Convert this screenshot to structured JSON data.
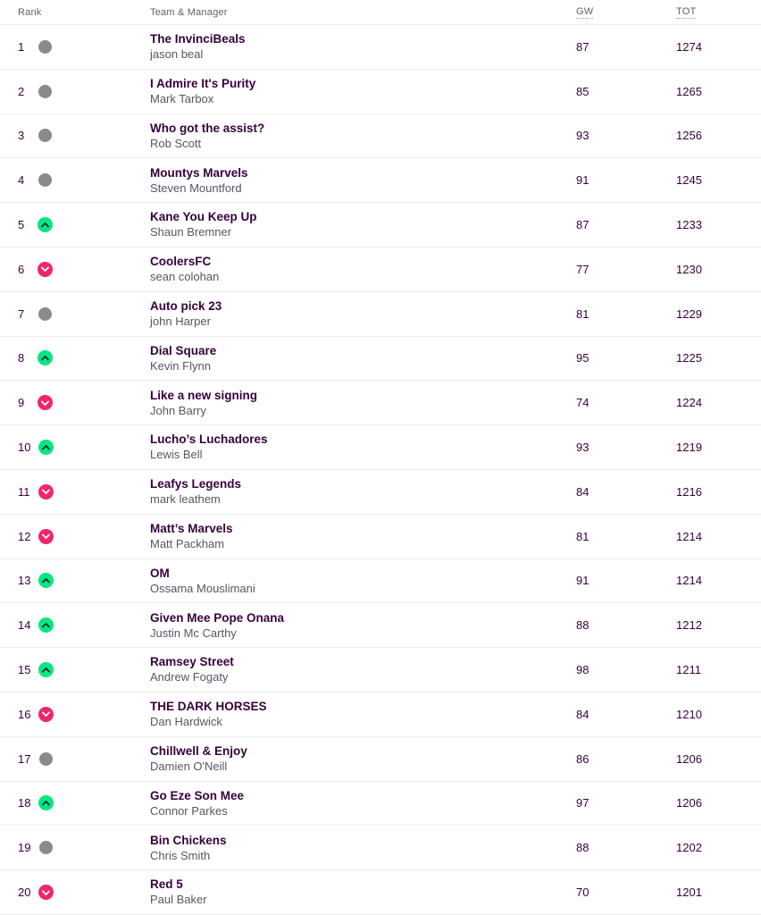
{
  "header": {
    "rank": "Rank",
    "team_manager": "Team & Manager",
    "gw": "GW",
    "tot": "TOT"
  },
  "colors": {
    "movement_up": "#01e87f",
    "movement_down": "#f0256e",
    "movement_same": "#8a8a8a",
    "accent_dark": "#37003c"
  },
  "table": {
    "rows": [
      {
        "rank": "1",
        "movement": "same",
        "team": "The InvinciBeals",
        "manager": "jason beal",
        "gw": "87",
        "tot": "1274"
      },
      {
        "rank": "2",
        "movement": "same",
        "team": "I Admire It's Purity",
        "manager": "Mark Tarbox",
        "gw": "85",
        "tot": "1265"
      },
      {
        "rank": "3",
        "movement": "same",
        "team": "Who got the assist?",
        "manager": "Rob Scott",
        "gw": "93",
        "tot": "1256"
      },
      {
        "rank": "4",
        "movement": "same",
        "team": "Mountys Marvels",
        "manager": "Steven Mountford",
        "gw": "91",
        "tot": "1245"
      },
      {
        "rank": "5",
        "movement": "up",
        "team": "Kane You Keep Up",
        "manager": "Shaun Bremner",
        "gw": "87",
        "tot": "1233"
      },
      {
        "rank": "6",
        "movement": "down",
        "team": "CoolersFC",
        "manager": "sean colohan",
        "gw": "77",
        "tot": "1230"
      },
      {
        "rank": "7",
        "movement": "same",
        "team": "Auto pick 23",
        "manager": "john Harper",
        "gw": "81",
        "tot": "1229"
      },
      {
        "rank": "8",
        "movement": "up",
        "team": "Dial Square",
        "manager": "Kevin Flynn",
        "gw": "95",
        "tot": "1225"
      },
      {
        "rank": "9",
        "movement": "down",
        "team": "Like a new signing",
        "manager": "John Barry",
        "gw": "74",
        "tot": "1224"
      },
      {
        "rank": "10",
        "movement": "up",
        "team": "Lucho’s Luchadores",
        "manager": "Lewis Bell",
        "gw": "93",
        "tot": "1219"
      },
      {
        "rank": "11",
        "movement": "down",
        "team": "Leafys Legends",
        "manager": "mark leathem",
        "gw": "84",
        "tot": "1216"
      },
      {
        "rank": "12",
        "movement": "down",
        "team": "Matt’s Marvels",
        "manager": "Matt Packham",
        "gw": "81",
        "tot": "1214"
      },
      {
        "rank": "13",
        "movement": "up",
        "team": "OM",
        "manager": "Ossama Mouslimani",
        "gw": "91",
        "tot": "1214"
      },
      {
        "rank": "14",
        "movement": "up",
        "team": "Given Mee Pope Onana",
        "manager": "Justin Mc Carthy",
        "gw": "88",
        "tot": "1212"
      },
      {
        "rank": "15",
        "movement": "up",
        "team": "Ramsey Street",
        "manager": "Andrew Fogaty",
        "gw": "98",
        "tot": "1211"
      },
      {
        "rank": "16",
        "movement": "down",
        "team": "THE DARK HORSES",
        "manager": "Dan Hardwick",
        "gw": "84",
        "tot": "1210"
      },
      {
        "rank": "17",
        "movement": "same",
        "team": "Chillwell & Enjoy",
        "manager": "Damien O'Neill",
        "gw": "86",
        "tot": "1206"
      },
      {
        "rank": "18",
        "movement": "up",
        "team": "Go Eze Son Mee",
        "manager": "Connor Parkes",
        "gw": "97",
        "tot": "1206"
      },
      {
        "rank": "19",
        "movement": "same",
        "team": "Bin Chickens",
        "manager": "Chris Smith",
        "gw": "88",
        "tot": "1202"
      },
      {
        "rank": "20",
        "movement": "down",
        "team": "Red 5",
        "manager": "Paul Baker",
        "gw": "70",
        "tot": "1201"
      }
    ]
  }
}
